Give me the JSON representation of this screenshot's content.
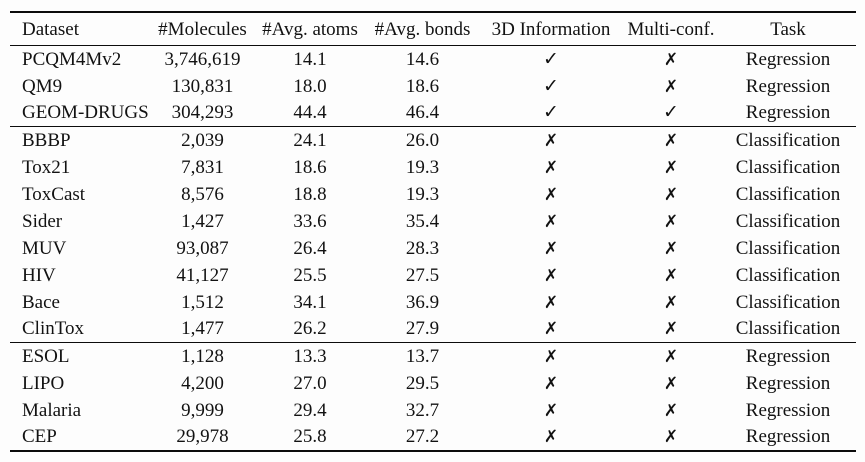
{
  "table": {
    "columns": [
      {
        "key": "dataset",
        "label": "Dataset"
      },
      {
        "key": "molecules",
        "label": "#Molecules"
      },
      {
        "key": "avg_atoms",
        "label": "#Avg. atoms"
      },
      {
        "key": "avg_bonds",
        "label": "#Avg. bonds"
      },
      {
        "key": "three_d",
        "label": "3D Information"
      },
      {
        "key": "multi_conf",
        "label": "Multi-conf."
      },
      {
        "key": "task",
        "label": "Task"
      }
    ],
    "symbols": {
      "yes": "✓",
      "no": "✗"
    },
    "text_color": "#121212",
    "background_color": "#fdfdfd",
    "groups": [
      {
        "rows": [
          {
            "dataset": "PCQM4Mv2",
            "molecules": "3,746,619",
            "avg_atoms": "14.1",
            "avg_bonds": "14.6",
            "three_d": "yes",
            "multi_conf": "no",
            "task": "Regression"
          },
          {
            "dataset": "QM9",
            "molecules": "130,831",
            "avg_atoms": "18.0",
            "avg_bonds": "18.6",
            "three_d": "yes",
            "multi_conf": "no",
            "task": "Regression"
          },
          {
            "dataset": "GEOM-DRUGS",
            "molecules": "304,293",
            "avg_atoms": "44.4",
            "avg_bonds": "46.4",
            "three_d": "yes",
            "multi_conf": "yes",
            "task": "Regression"
          }
        ]
      },
      {
        "rows": [
          {
            "dataset": "BBBP",
            "molecules": "2,039",
            "avg_atoms": "24.1",
            "avg_bonds": "26.0",
            "three_d": "no",
            "multi_conf": "no",
            "task": "Classification"
          },
          {
            "dataset": "Tox21",
            "molecules": "7,831",
            "avg_atoms": "18.6",
            "avg_bonds": "19.3",
            "three_d": "no",
            "multi_conf": "no",
            "task": "Classification"
          },
          {
            "dataset": "ToxCast",
            "molecules": "8,576",
            "avg_atoms": "18.8",
            "avg_bonds": "19.3",
            "three_d": "no",
            "multi_conf": "no",
            "task": "Classification"
          },
          {
            "dataset": "Sider",
            "molecules": "1,427",
            "avg_atoms": "33.6",
            "avg_bonds": "35.4",
            "three_d": "no",
            "multi_conf": "no",
            "task": "Classification"
          },
          {
            "dataset": "MUV",
            "molecules": "93,087",
            "avg_atoms": "26.4",
            "avg_bonds": "28.3",
            "three_d": "no",
            "multi_conf": "no",
            "task": "Classification"
          },
          {
            "dataset": "HIV",
            "molecules": "41,127",
            "avg_atoms": "25.5",
            "avg_bonds": "27.5",
            "three_d": "no",
            "multi_conf": "no",
            "task": "Classification"
          },
          {
            "dataset": "Bace",
            "molecules": "1,512",
            "avg_atoms": "34.1",
            "avg_bonds": "36.9",
            "three_d": "no",
            "multi_conf": "no",
            "task": "Classification"
          },
          {
            "dataset": "ClinTox",
            "molecules": "1,477",
            "avg_atoms": "26.2",
            "avg_bonds": "27.9",
            "three_d": "no",
            "multi_conf": "no",
            "task": "Classification"
          }
        ]
      },
      {
        "rows": [
          {
            "dataset": "ESOL",
            "molecules": "1,128",
            "avg_atoms": "13.3",
            "avg_bonds": "13.7",
            "three_d": "no",
            "multi_conf": "no",
            "task": "Regression"
          },
          {
            "dataset": "LIPO",
            "molecules": "4,200",
            "avg_atoms": "27.0",
            "avg_bonds": "29.5",
            "three_d": "no",
            "multi_conf": "no",
            "task": "Regression"
          },
          {
            "dataset": "Malaria",
            "molecules": "9,999",
            "avg_atoms": "29.4",
            "avg_bonds": "32.7",
            "three_d": "no",
            "multi_conf": "no",
            "task": "Regression"
          },
          {
            "dataset": "CEP",
            "molecules": "29,978",
            "avg_atoms": "25.8",
            "avg_bonds": "27.2",
            "three_d": "no",
            "multi_conf": "no",
            "task": "Regression"
          }
        ]
      }
    ]
  }
}
